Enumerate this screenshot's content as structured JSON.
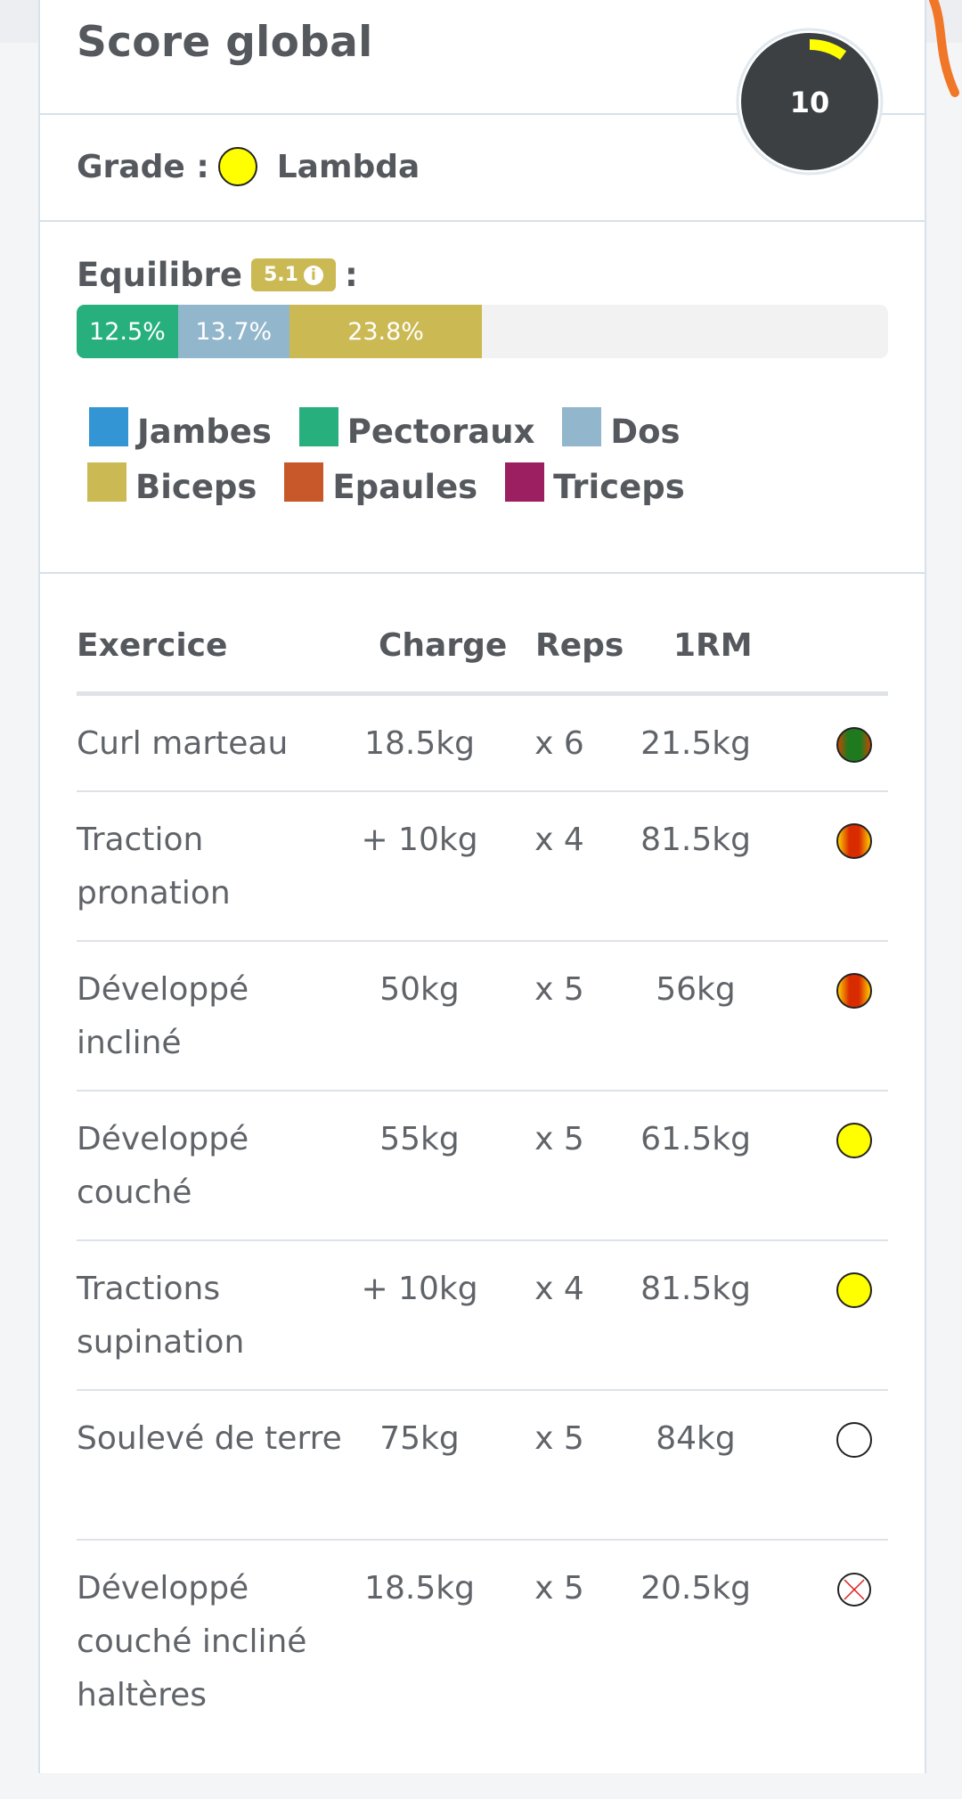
{
  "score": {
    "title": "Score global",
    "value": "10",
    "gauge_fraction": 0.1,
    "gauge_color": "#ffff00"
  },
  "grade": {
    "label": "Grade :",
    "name": "Lambda",
    "color": "#ffff00"
  },
  "balance": {
    "label": "Equilibre",
    "badge": "5.1",
    "badge_icon": "info-icon",
    "colon": ":",
    "segments": [
      {
        "label": "12.5%",
        "value": 12.5,
        "color": "#27b07e"
      },
      {
        "label": "13.7%",
        "value": 13.7,
        "color": "#92b6cb"
      },
      {
        "label": "23.8%",
        "value": 23.8,
        "color": "#cbb953"
      }
    ],
    "legend": [
      {
        "label": "Jambes",
        "color": "#3395d3"
      },
      {
        "label": "Pectoraux",
        "color": "#27b07e"
      },
      {
        "label": "Dos",
        "color": "#92b6cb"
      },
      {
        "label": "Biceps",
        "color": "#cbb953"
      },
      {
        "label": "Epaules",
        "color": "#c8582a"
      },
      {
        "label": "Triceps",
        "color": "#9c1f62"
      }
    ]
  },
  "table": {
    "headers": {
      "exercise": "Exercice",
      "charge": "Charge",
      "reps": "Reps",
      "rm": "1RM"
    },
    "rows": [
      {
        "name": "Curl marteau",
        "charge": "18.5kg",
        "reps": "x 6",
        "rm": "21.5kg",
        "grade": "green-grade-icon"
      },
      {
        "name": "Traction pronation",
        "charge": "+ 10kg",
        "reps": "x 4",
        "rm": "81.5kg",
        "grade": "red-grade-icon"
      },
      {
        "name": "Développé incliné",
        "charge": "50kg",
        "reps": "x 5",
        "rm": "56kg",
        "grade": "red-grade-icon"
      },
      {
        "name": "Développé couché",
        "charge": "55kg",
        "reps": "x 5",
        "rm": "61.5kg",
        "grade": "yellow-grade-icon"
      },
      {
        "name": "Tractions supination",
        "charge": "+ 10kg",
        "reps": "x 4",
        "rm": "81.5kg",
        "grade": "yellow-grade-icon"
      },
      {
        "name": "Soulevé de terre",
        "charge": "75kg",
        "reps": "x 5",
        "rm": "84kg",
        "grade": "white-grade-icon"
      },
      {
        "name": "Développé couché incliné haltères",
        "charge": "18.5kg",
        "reps": "x 5",
        "rm": "20.5kg",
        "grade": "no-grade-icon"
      }
    ]
  }
}
